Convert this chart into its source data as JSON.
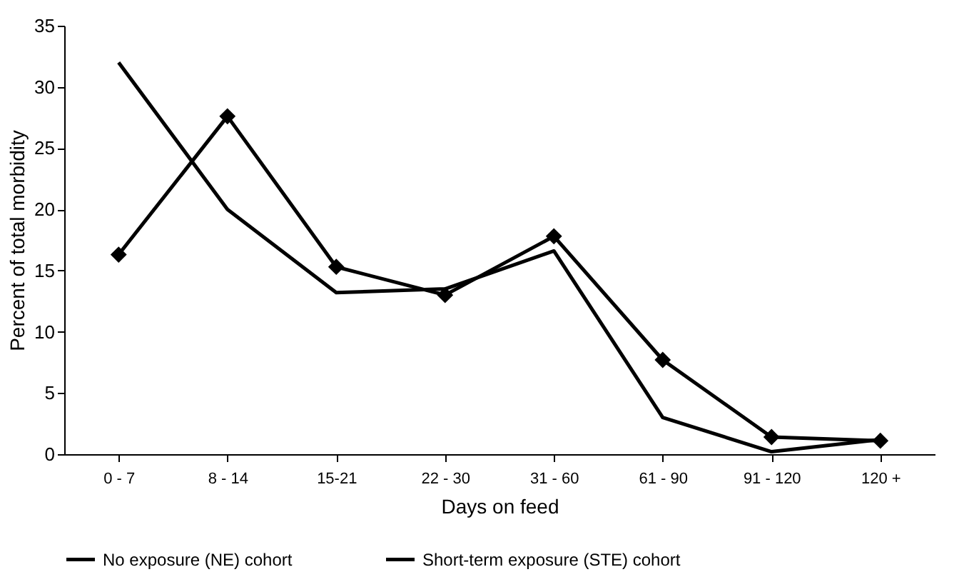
{
  "chart_data": {
    "type": "line",
    "xlabel": "Days on feed",
    "ylabel": "Percent of total morbidity",
    "categories": [
      "0 - 7",
      "8 - 14",
      "15-21",
      "22 - 30",
      "31 - 60",
      "61 - 90",
      "91 - 120",
      "120 +"
    ],
    "series": [
      {
        "name": "No exposure (NE) cohort",
        "color": "#000000",
        "marker": "diamond",
        "values": [
          16.3,
          27.6,
          15.3,
          13.0,
          17.8,
          7.7,
          1.4,
          1.1
        ]
      },
      {
        "name": "Short-term exposure (STE) cohort",
        "color": "#000000",
        "marker": "none",
        "values": [
          32.0,
          20.0,
          13.2,
          13.5,
          16.6,
          3.0,
          0.2,
          1.2
        ]
      }
    ],
    "ylim": [
      0,
      35
    ],
    "yticks": [
      0,
      5,
      10,
      15,
      20,
      25,
      30,
      35
    ],
    "grid": false,
    "legend": "bottom",
    "line_style": "solid"
  }
}
